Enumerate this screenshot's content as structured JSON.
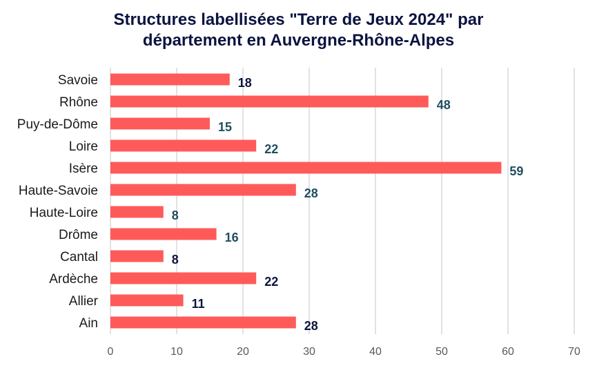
{
  "chart_data": {
    "type": "bar",
    "orientation": "horizontal",
    "title_lines": [
      "Structures labellisées \"Terre de Jeux 2024\" par",
      "département en Auvergne-Rhône-Alpes"
    ],
    "categories": [
      "Savoie",
      "Rhône",
      "Puy-de-Dôme",
      "Loire",
      "Isère",
      "Haute-Savoie",
      "Haute-Loire",
      "Drôme",
      "Cantal",
      "Ardèche",
      "Allier",
      "Ain"
    ],
    "values": [
      18,
      48,
      15,
      22,
      59,
      28,
      8,
      16,
      8,
      22,
      11,
      28
    ],
    "xlim": [
      0,
      70
    ],
    "xticks": [
      0,
      10,
      20,
      30,
      40,
      50,
      60,
      70
    ],
    "grid": "vertical",
    "legend": "none",
    "colors": {
      "bar": "#ff5a5a",
      "grid": "#d9d9d9",
      "title": "#0b1340",
      "label_dark": "#0b1340",
      "label_teal": "#1f4e5f"
    },
    "value_label_colors": [
      "#0b1340",
      "#1f4e5f",
      "#1f4e5f",
      "#1f4e5f",
      "#1f4e5f",
      "#1f4e5f",
      "#1f4e5f",
      "#1f4e5f",
      "#0b1340",
      "#0b1340",
      "#0b1340",
      "#0b1340"
    ]
  }
}
